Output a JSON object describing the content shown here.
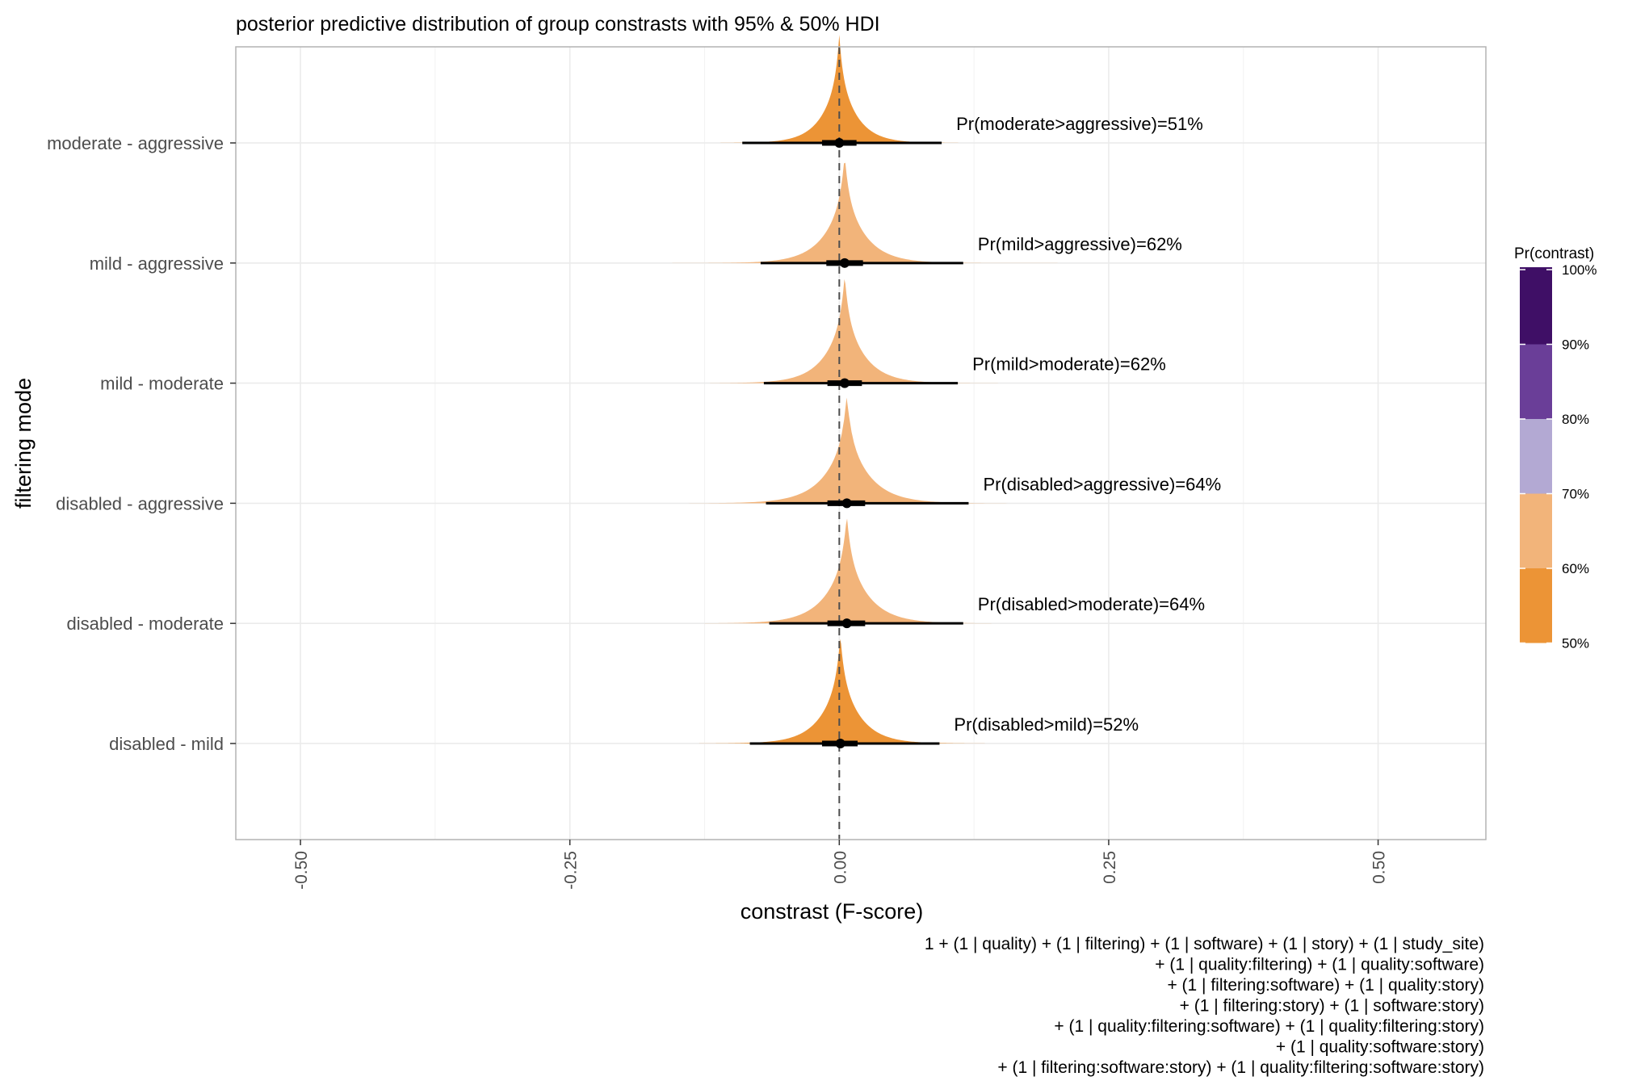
{
  "chart_data": {
    "type": "density",
    "title": "posterior predictive distribution of group constrasts with 95% & 50% HDI",
    "xlabel": "constrast (F-score)",
    "ylabel": "filtering mode",
    "xlim": [
      -0.56,
      0.6
    ],
    "x_ticks": [
      -0.5,
      -0.25,
      0.0,
      0.25,
      0.5
    ],
    "x_tick_labels": [
      "-0.50",
      "-0.25",
      "0.00",
      "0.25",
      "0.50"
    ],
    "reference_line": 0.0,
    "grid": true,
    "categories": [
      "moderate - aggressive",
      "mild - aggressive",
      "mild - moderate",
      "disabled - aggressive",
      "disabled - moderate",
      "disabled - mild"
    ],
    "series": [
      {
        "category": "moderate - aggressive",
        "prob_label": "Pr(moderate>aggressive)=51%",
        "prob": 0.51,
        "color": "#ec9436",
        "median": 0.0,
        "hdi50": [
          -0.016,
          0.016
        ],
        "hdi95": [
          -0.09,
          0.095
        ],
        "range": [
          -0.135,
          0.135
        ],
        "scale": 0.04
      },
      {
        "category": "mild - aggressive",
        "prob_label": "Pr(mild>aggressive)=62%",
        "prob": 0.62,
        "color": "#f2b47a",
        "median": 0.005,
        "hdi50": [
          -0.012,
          0.022
        ],
        "hdi95": [
          -0.073,
          0.115
        ],
        "range": [
          -0.155,
          0.24
        ],
        "scale": 0.048
      },
      {
        "category": "mild - moderate",
        "prob_label": "Pr(mild>moderate)=62%",
        "prob": 0.62,
        "color": "#f2b47a",
        "median": 0.005,
        "hdi50": [
          -0.011,
          0.021
        ],
        "hdi95": [
          -0.07,
          0.11
        ],
        "range": [
          -0.12,
          0.17
        ],
        "scale": 0.046
      },
      {
        "category": "disabled - aggressive",
        "prob_label": "Pr(disabled>aggressive)=64%",
        "prob": 0.64,
        "color": "#f2b47a",
        "median": 0.007,
        "hdi50": [
          -0.011,
          0.024
        ],
        "hdi95": [
          -0.068,
          0.12
        ],
        "range": [
          -0.26,
          0.43
        ],
        "scale": 0.052
      },
      {
        "category": "disabled - moderate",
        "prob_label": "Pr(disabled>moderate)=64%",
        "prob": 0.64,
        "color": "#f2b47a",
        "median": 0.007,
        "hdi50": [
          -0.011,
          0.024
        ],
        "hdi95": [
          -0.065,
          0.115
        ],
        "range": [
          -0.125,
          0.185
        ],
        "scale": 0.05
      },
      {
        "category": "disabled - mild",
        "prob_label": "Pr(disabled>mild)=52%",
        "prob": 0.52,
        "color": "#ec9436",
        "median": 0.001,
        "hdi50": [
          -0.016,
          0.017
        ],
        "hdi95": [
          -0.083,
          0.093
        ],
        "range": [
          -0.13,
          0.135
        ],
        "scale": 0.045
      }
    ],
    "legend": {
      "title": "Pr(contrast)",
      "position": "right",
      "bins": [
        {
          "label": "50%",
          "color": "#ec9436"
        },
        {
          "label": "60%",
          "color": "#f2b47a"
        },
        {
          "label": "70%",
          "color": "#b3a9d3"
        },
        {
          "label": "80%",
          "color": "#6a3e98"
        },
        {
          "label": "90%",
          "color": "#3f0f66"
        },
        {
          "label": "100%",
          "color": "#3f0f66"
        }
      ]
    },
    "caption_lines": [
      "1 + (1 | quality) + (1 | filtering) + (1 | software) + (1 | story) + (1 | study_site)",
      "+ (1 | quality:filtering) + (1 | quality:software)",
      "+ (1 | filtering:software) + (1 | quality:story)",
      "+ (1 | filtering:story) + (1 | software:story)",
      "+ (1 | quality:filtering:software) + (1 | quality:filtering:story)",
      "+ (1 | quality:software:story)",
      "+ (1 | filtering:software:story) + (1 | quality:filtering:software:story)"
    ]
  }
}
